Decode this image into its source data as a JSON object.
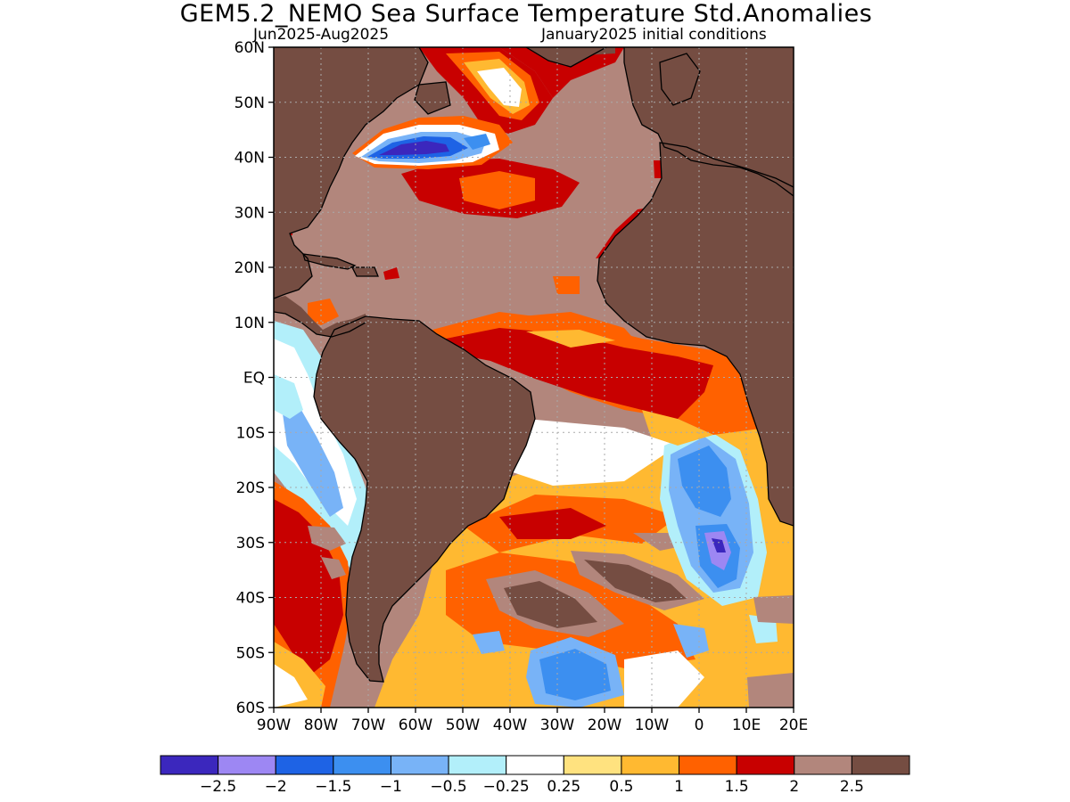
{
  "header": {
    "title": "GEM5.2_NEMO Sea Surface Temperature Std.Anomalies",
    "period": "Jun2025-Aug2025",
    "init": "January2025 initial conditions"
  },
  "axes": {
    "lat_labels": [
      "60N",
      "50N",
      "40N",
      "30N",
      "20N",
      "10N",
      "EQ",
      "10S",
      "20S",
      "30S",
      "40S",
      "50S",
      "60S"
    ],
    "lon_labels": [
      "90W",
      "80W",
      "70W",
      "60W",
      "50W",
      "40W",
      "30W",
      "20W",
      "10W",
      "0",
      "10E",
      "20E"
    ]
  },
  "colorbar": {
    "colors": [
      "#3b27bd",
      "#9d87f3",
      "#1e63e5",
      "#3c8ff0",
      "#78b3f7",
      "#b2effa",
      "#ffffff",
      "#ffe27f",
      "#ffb931",
      "#ff6100",
      "#c80000",
      "#b2867c",
      "#754d42"
    ],
    "labels": [
      "-2.5",
      "-2",
      "-1.5",
      "-1",
      "-0.5",
      "-0.25",
      "0.25",
      "0.5",
      "1",
      "1.5",
      "2",
      "2.5"
    ]
  },
  "colors": {
    "land": "#754d42",
    "anom_25": "#b2867c",
    "anom_20": "#c80000",
    "anom_15": "#ff6100",
    "anom_10": "#ffb931",
    "anom_05": "#ffe27f",
    "neutral": "#ffffff",
    "anom_m025": "#b2effa",
    "anom_m05": "#78b3f7",
    "anom_m10": "#3c8ff0",
    "anom_m15": "#1e63e5",
    "anom_m25": "#3b27bd",
    "anom_m20": "#9d87f3"
  }
}
